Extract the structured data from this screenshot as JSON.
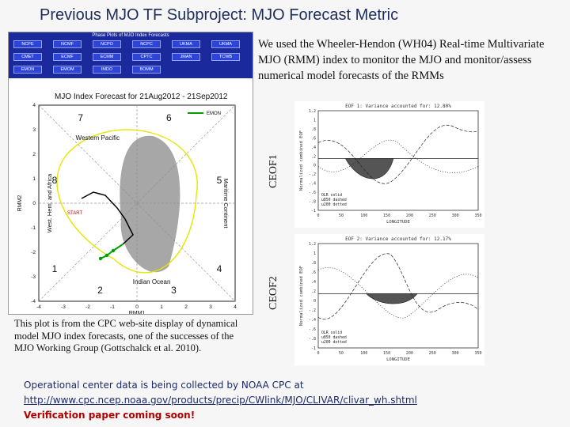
{
  "slide": {
    "title": "Previous MJO TF Subproject: MJO Forecast Metric",
    "intro": "We used the Wheeler-Hendon (WH04) Real-time Multivariate MJO (RMM) index to monitor the MJO and monitor/assess numerical model forecasts of the RMMs",
    "caption": "This plot is from the CPC web-site display of dynamical model MJO index forecasts, one of the successes of the MJO Working Group (Gottschalck et al. 2010).",
    "bottom_line1": "Operational center data is being collected by NOAA CPC at",
    "bottom_link": "http://www.cpc.ncep.noaa.gov/products/precip/CWlink/MJO/CLIVAR/clivar_wh.shtml",
    "bottom_warning": "Verification paper coming soon!"
  },
  "phase_plot": {
    "menu_title": "Phase Plots of MJO Index Forecasts",
    "menu_row1": [
      "NCPE",
      "NCMF",
      "NCPO",
      "NCPC",
      "UKMA",
      "UKMA"
    ],
    "menu_row2": [
      "CMET",
      "ECMF",
      "ECMM",
      "CPTC",
      "JMAN",
      "TCWB"
    ],
    "menu_row3": [
      "EMON",
      "EMOM",
      "IMDO",
      "BOMM"
    ],
    "title": "MJO Index Forecast for 21Aug2012 - 21Sep2012",
    "legend": "EMON",
    "region_top": "Western Pacific",
    "region_bottom": "Indian Ocean",
    "region_left": "West. Hem. and Africa",
    "region_right": "Maritime Continent",
    "phases": [
      "1",
      "2",
      "3",
      "4",
      "5",
      "6",
      "7",
      "8"
    ],
    "xlabel": "RMM1",
    "ylabel": "RMM2",
    "ticks": [
      "-4",
      "-3",
      "-2",
      "-1",
      "0",
      "1",
      "2",
      "3",
      "4"
    ],
    "start_label": "START",
    "colors": {
      "menu": "#1a2a9c",
      "ensemble": "#e6e600",
      "spread": "#8a8a8a",
      "obs": "#000000",
      "forecast": "#00a000"
    }
  },
  "eof1": {
    "label": "CEOF1",
    "header": "EOF 1: Variance accounted for: 12.80%",
    "ylabel": "Normalized combined EOF",
    "xlabel": "LONGITUDE",
    "xticks": [
      "0",
      "50",
      "100",
      "150",
      "200",
      "250",
      "300",
      "350"
    ],
    "yticks": [
      "1.2",
      "1",
      ".8",
      ".6",
      ".4",
      ".2",
      "0",
      "-.2",
      "-.4",
      "-.6",
      "-.8",
      "-1"
    ],
    "legend": [
      "OLR solid",
      "u850 dashed",
      "u200 dotted"
    ]
  },
  "eof2": {
    "label": "CEOF2",
    "header": "EOF 2: Variance accounted for: 12.17%",
    "ylabel": "Normalized combined EOF",
    "xlabel": "LONGITUDE",
    "xticks": [
      "0",
      "50",
      "100",
      "150",
      "200",
      "250",
      "300",
      "350"
    ],
    "yticks": [
      "1.2",
      "1",
      ".8",
      ".6",
      ".4",
      ".2",
      "0",
      "-.2",
      "-.4",
      "-.6",
      "-.8",
      "-1"
    ],
    "legend": [
      "OLR solid",
      "u850 dashed",
      "u200 dotted"
    ]
  }
}
